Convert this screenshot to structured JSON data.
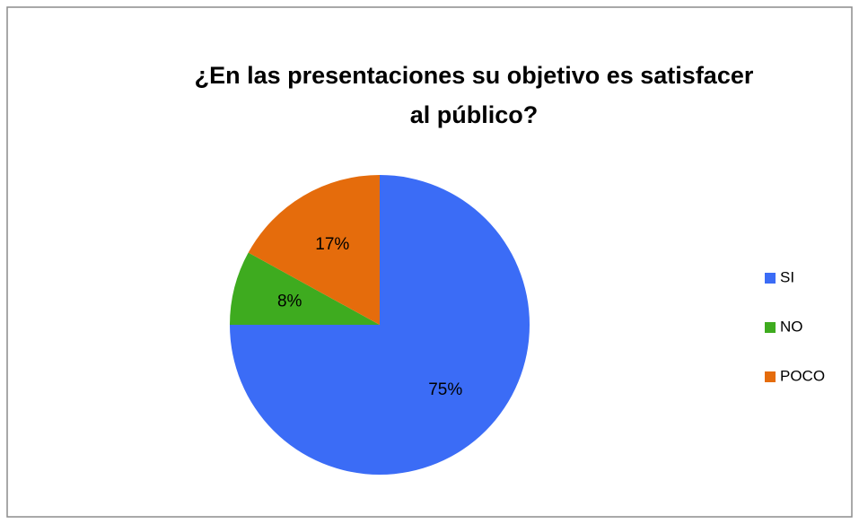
{
  "chart_data": {
    "type": "pie",
    "title": [
      "¿En las presentaciones su objetivo es satisfacer",
      "al público?"
    ],
    "categories": [
      "SI",
      "NO",
      "POCO"
    ],
    "values": [
      75,
      8,
      17
    ],
    "value_labels": [
      "75%",
      "8%",
      "17%"
    ],
    "colors": [
      "#3b6cf6",
      "#3eab1f",
      "#e56c0c"
    ],
    "legend": "right"
  }
}
